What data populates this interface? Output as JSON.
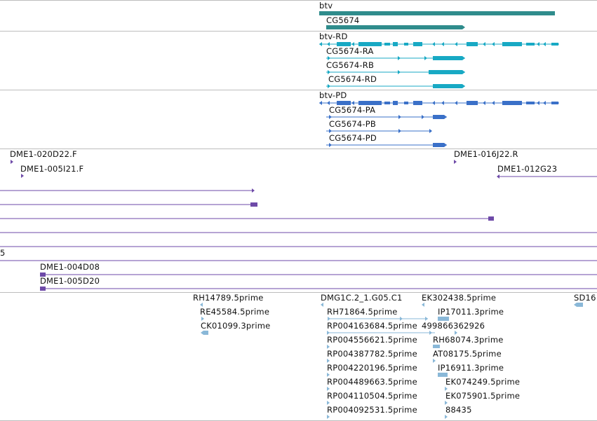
{
  "colors": {
    "gene": "#2f8c8c",
    "transcript": "#18a9c4",
    "protein": "#3a70c8",
    "clone": "#6e4aa8",
    "est": "#8ab8d8",
    "separator": "#bdbdbd"
  },
  "tracks": {
    "gene": {
      "features": [
        {
          "label": "btv"
        },
        {
          "label": "CG5674"
        }
      ]
    },
    "transcripts": {
      "features": [
        {
          "label": "btv-RD"
        },
        {
          "label": "CG5674-RA"
        },
        {
          "label": "CG5674-RB"
        },
        {
          "label": "CG5674-RD"
        }
      ]
    },
    "proteins": {
      "features": [
        {
          "label": "btv-PD"
        },
        {
          "label": "CG5674-PA"
        },
        {
          "label": "CG5674-PB"
        },
        {
          "label": "CG5674-PD"
        }
      ]
    },
    "clones": {
      "features": [
        {
          "label": "DME1-020D22.F"
        },
        {
          "label": "DME1-005I21.F"
        },
        {
          "label": "DME1-016J22.R"
        },
        {
          "label": "DME1-012G23"
        },
        {
          "label": "5"
        },
        {
          "label": "DME1-004D08"
        },
        {
          "label": "DME1-005D20"
        }
      ]
    },
    "ests": {
      "features": [
        {
          "label": "RH14789.5prime"
        },
        {
          "label": "RE45584.5prime"
        },
        {
          "label": "CK01099.3prime"
        },
        {
          "label": "DMG1C.2_1.G05.C1"
        },
        {
          "label": "RH71864.5prime"
        },
        {
          "label": "RP004163684.5prime"
        },
        {
          "label": "RP004556621.5prime"
        },
        {
          "label": "RP004387782.5prime"
        },
        {
          "label": "RP004220196.5prime"
        },
        {
          "label": "RP004489663.5prime"
        },
        {
          "label": "RP004110504.5prime"
        },
        {
          "label": "RP004092531.5prime"
        },
        {
          "label": "EK302438.5prime"
        },
        {
          "label": "IP17011.3prime"
        },
        {
          "label": "499866362926"
        },
        {
          "label": "RH68074.3prime"
        },
        {
          "label": "AT08175.5prime"
        },
        {
          "label": "IP16911.3prime"
        },
        {
          "label": "EK074249.5prime"
        },
        {
          "label": "EK075901.5prime"
        },
        {
          "label": "88435"
        },
        {
          "label": "SD16"
        }
      ]
    }
  }
}
